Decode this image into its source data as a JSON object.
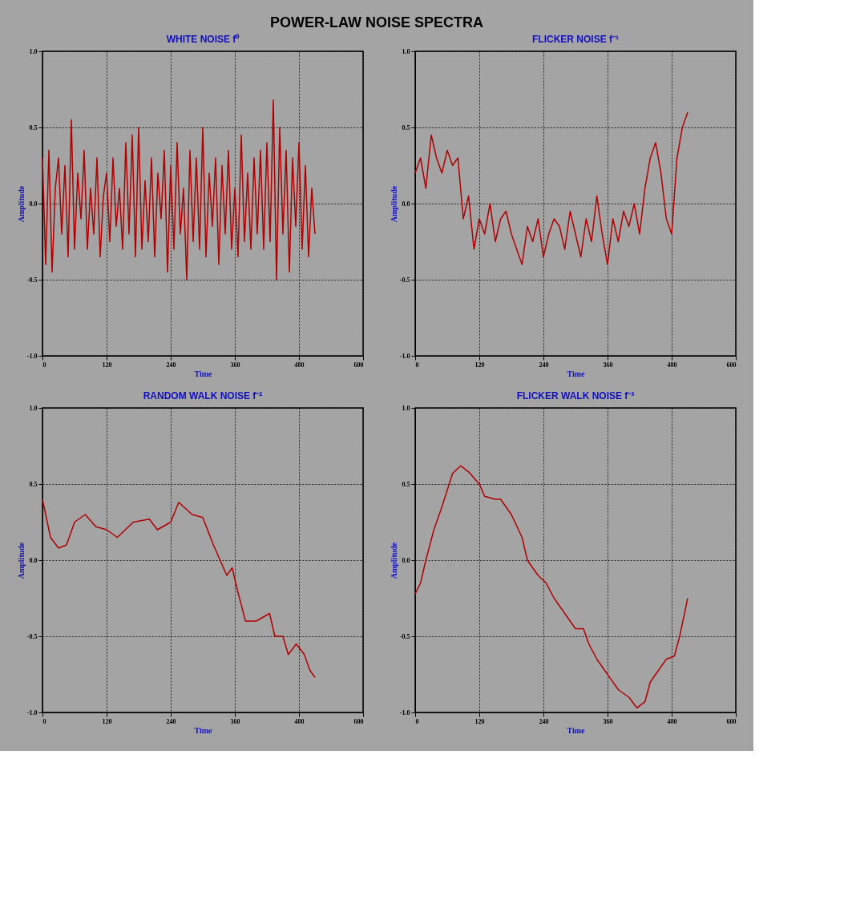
{
  "chart_data": [
    {
      "type": "line",
      "title": "WHITE NOISE   f⁰",
      "xlabel": "Time",
      "ylabel": "Amplitude",
      "annotations": [
        "POWER-LAW NOISE SPECTRA"
      ],
      "xlim": [
        0,
        600
      ],
      "xticks": [
        0,
        120,
        240,
        360,
        480,
        600
      ],
      "ylim": [
        -1,
        1
      ],
      "yticks": [
        {
          "value": -1,
          "label": "-1.0"
        },
        {
          "value": -0.5,
          "label": "-0.5"
        },
        {
          "value": 0,
          "label": "0.0"
        },
        {
          "value": 0.5,
          "label": "0.5"
        },
        {
          "value": 1,
          "label": "1.0"
        }
      ],
      "grid": true,
      "line_style": "solid",
      "series": [
        {
          "color": "#b00000",
          "x": [
            0,
            6,
            12,
            18,
            24,
            30,
            36,
            42,
            48,
            54,
            60,
            66,
            72,
            78,
            84,
            90,
            96,
            102,
            108,
            114,
            120,
            126,
            132,
            138,
            144,
            150,
            156,
            162,
            168,
            174,
            180,
            186,
            192,
            198,
            204,
            210,
            216,
            222,
            228,
            234,
            240,
            246,
            252,
            258,
            264,
            270,
            276,
            282,
            288,
            294,
            300,
            306,
            312,
            318,
            324,
            330,
            336,
            342,
            348,
            354,
            360,
            366,
            372,
            378,
            384,
            390,
            396,
            402,
            408,
            414,
            420,
            426,
            432,
            438,
            444,
            450,
            456,
            462,
            468,
            474,
            480,
            486,
            492,
            498,
            504,
            510
          ],
          "values": [
            0.3,
            -0.4,
            0.35,
            -0.45,
            0.1,
            0.3,
            -0.2,
            0.25,
            -0.35,
            0.55,
            -0.3,
            0.2,
            -0.1,
            0.35,
            -0.3,
            0.1,
            -0.2,
            0.3,
            -0.35,
            0.05,
            0.2,
            -0.25,
            0.3,
            -0.15,
            0.1,
            -0.3,
            0.4,
            -0.2,
            0.45,
            -0.35,
            0.5,
            -0.3,
            0.15,
            -0.25,
            0.3,
            -0.35,
            0.2,
            -0.1,
            0.35,
            -0.45,
            0.25,
            -0.3,
            0.4,
            -0.2,
            0.1,
            -0.5,
            0.35,
            -0.25,
            0.3,
            -0.3,
            0.5,
            -0.35,
            0.2,
            -0.15,
            0.3,
            -0.4,
            0.25,
            -0.2,
            0.35,
            -0.3,
            0.1,
            -0.35,
            0.45,
            -0.25,
            0.2,
            -0.3,
            0.3,
            -0.2,
            0.35,
            -0.3,
            0.4,
            -0.25,
            0.68,
            -0.5,
            0.5,
            -0.2,
            0.35,
            -0.45,
            0.3,
            -0.15,
            0.4,
            -0.3,
            0.25,
            -0.35,
            0.1,
            -0.2
          ]
        }
      ]
    },
    {
      "type": "line",
      "title": "FLICKER NOISE   f⁻¹",
      "xlabel": "Time",
      "ylabel": "Amplitude",
      "xlim": [
        0,
        600
      ],
      "xticks": [
        0,
        120,
        240,
        360,
        480,
        600
      ],
      "ylim": [
        -1,
        1
      ],
      "yticks": [
        {
          "value": -1,
          "label": "-1.0"
        },
        {
          "value": -0.5,
          "label": "-0.5"
        },
        {
          "value": 0,
          "label": "0.0"
        },
        {
          "value": 0.5,
          "label": "0.5"
        },
        {
          "value": 1,
          "label": "1.0"
        }
      ],
      "grid": true,
      "line_style": "solid",
      "series": [
        {
          "color": "#b00000",
          "x": [
            0,
            10,
            20,
            30,
            40,
            50,
            60,
            70,
            80,
            90,
            100,
            110,
            120,
            130,
            140,
            150,
            160,
            170,
            180,
            190,
            200,
            210,
            220,
            230,
            240,
            250,
            260,
            270,
            280,
            290,
            300,
            310,
            320,
            330,
            340,
            350,
            360,
            370,
            380,
            390,
            400,
            410,
            420,
            430,
            440,
            450,
            460,
            470,
            480,
            490,
            500,
            510
          ],
          "values": [
            0.2,
            0.3,
            0.1,
            0.45,
            0.3,
            0.2,
            0.35,
            0.25,
            0.3,
            -0.1,
            0.05,
            -0.3,
            -0.1,
            -0.2,
            0.0,
            -0.25,
            -0.1,
            -0.05,
            -0.2,
            -0.3,
            -0.4,
            -0.15,
            -0.25,
            -0.1,
            -0.35,
            -0.2,
            -0.1,
            -0.15,
            -0.3,
            -0.05,
            -0.2,
            -0.35,
            -0.1,
            -0.25,
            0.05,
            -0.2,
            -0.4,
            -0.1,
            -0.25,
            -0.05,
            -0.15,
            0.0,
            -0.2,
            0.1,
            0.3,
            0.4,
            0.2,
            -0.1,
            -0.2,
            0.3,
            0.5,
            0.6
          ]
        }
      ]
    },
    {
      "type": "line",
      "title": "RANDOM WALK NOISE   f⁻²",
      "xlabel": "Time",
      "ylabel": "Amplitude",
      "xlim": [
        0,
        600
      ],
      "xticks": [
        0,
        120,
        240,
        360,
        480,
        600
      ],
      "ylim": [
        -1,
        1
      ],
      "yticks": [
        {
          "value": -1,
          "label": "-1.0"
        },
        {
          "value": -0.5,
          "label": "-0.5"
        },
        {
          "value": 0,
          "label": "0.0"
        },
        {
          "value": 0.5,
          "label": "0.5"
        },
        {
          "value": 1,
          "label": "1.0"
        }
      ],
      "grid": true,
      "line_style": "solid",
      "series": [
        {
          "color": "#b00000",
          "x": [
            0,
            15,
            30,
            45,
            60,
            80,
            100,
            120,
            140,
            170,
            200,
            215,
            240,
            255,
            280,
            300,
            320,
            345,
            355,
            365,
            380,
            400,
            425,
            435,
            450,
            460,
            475,
            490,
            500,
            510
          ],
          "values": [
            0.4,
            0.15,
            0.08,
            0.1,
            0.25,
            0.3,
            0.22,
            0.2,
            0.15,
            0.25,
            0.27,
            0.2,
            0.25,
            0.38,
            0.3,
            0.28,
            0.1,
            -0.1,
            -0.05,
            -0.2,
            -0.4,
            -0.4,
            -0.35,
            -0.5,
            -0.5,
            -0.62,
            -0.55,
            -0.62,
            -0.72,
            -0.77
          ]
        }
      ]
    },
    {
      "type": "line",
      "title": "FLICKER WALK NOISE   f⁻³",
      "xlabel": "Time",
      "ylabel": "Amplitude",
      "xlim": [
        0,
        600
      ],
      "xticks": [
        0,
        120,
        240,
        360,
        480,
        600
      ],
      "ylim": [
        -1,
        1
      ],
      "yticks": [
        {
          "value": -1,
          "label": "-1.0"
        },
        {
          "value": -0.5,
          "label": "-0.5"
        },
        {
          "value": 0,
          "label": "0.0"
        },
        {
          "value": 0.5,
          "label": "0.5"
        },
        {
          "value": 1,
          "label": "1.0"
        }
      ],
      "grid": true,
      "line_style": "solid",
      "series": [
        {
          "color": "#b00000",
          "x": [
            0,
            10,
            20,
            35,
            50,
            70,
            85,
            100,
            120,
            130,
            150,
            160,
            180,
            200,
            210,
            230,
            245,
            260,
            280,
            300,
            315,
            325,
            340,
            360,
            380,
            400,
            415,
            430,
            440,
            460,
            470,
            485,
            495,
            510
          ],
          "values": [
            -0.22,
            -0.15,
            0.0,
            0.2,
            0.35,
            0.57,
            0.62,
            0.58,
            0.5,
            0.42,
            0.4,
            0.4,
            0.3,
            0.15,
            0.0,
            -0.1,
            -0.15,
            -0.25,
            -0.35,
            -0.45,
            -0.45,
            -0.55,
            -0.65,
            -0.75,
            -0.85,
            -0.9,
            -0.97,
            -0.93,
            -0.8,
            -0.7,
            -0.65,
            -0.63,
            -0.5,
            -0.25
          ]
        }
      ]
    }
  ]
}
